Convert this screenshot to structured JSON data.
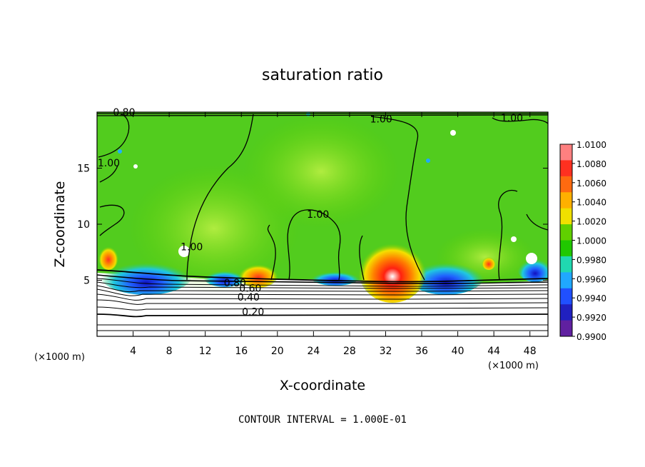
{
  "chart_data": {
    "type": "heatmap",
    "title": "saturation ratio",
    "xlabel": "X-coordinate",
    "ylabel": "Z-coordinate",
    "x_unit": "(×1000 m)",
    "z_unit": "(×1000 m)",
    "xlim": [
      0,
      50
    ],
    "ylim": [
      0,
      20
    ],
    "x_ticks": [
      4,
      8,
      12,
      16,
      20,
      24,
      28,
      32,
      36,
      40,
      44,
      48
    ],
    "y_ticks": [
      5,
      10,
      15
    ],
    "colorbar": {
      "min": 0.99,
      "max": 1.01,
      "ticks": [
        "1.0100",
        "1.0080",
        "1.0060",
        "1.0040",
        "1.0020",
        "1.0000",
        "0.9980",
        "0.9960",
        "0.9940",
        "0.9920",
        "0.9900"
      ],
      "colors": [
        "#ff8080",
        "#ff3020",
        "#ff6a10",
        "#ffb000",
        "#f0e000",
        "#60d000",
        "#20c800",
        "#20d8b0",
        "#20a8ff",
        "#2050ff",
        "#2020c0",
        "#6020a0"
      ]
    },
    "contour_labels": [
      {
        "text": "0.80",
        "x": 3.0,
        "z": 19.8
      },
      {
        "text": "1.00",
        "x": 31.5,
        "z": 19.2
      },
      {
        "text": "1.00",
        "x": 46.0,
        "z": 19.3
      },
      {
        "text": "1.00",
        "x": 1.3,
        "z": 15.3
      },
      {
        "text": "1.00",
        "x": 24.5,
        "z": 10.7
      },
      {
        "text": "1.00",
        "x": 10.5,
        "z": 7.8
      },
      {
        "text": "0.80",
        "x": 15.3,
        "z": 4.6
      },
      {
        "text": "0.60",
        "x": 17.0,
        "z": 4.1
      },
      {
        "text": "0.40",
        "x": 16.8,
        "z": 3.3
      },
      {
        "text": "0.20",
        "x": 17.3,
        "z": 2.0
      }
    ],
    "warm_anomalies": [
      {
        "x": 32.5,
        "z": 5.5,
        "peak": 1.008
      },
      {
        "x": 18.0,
        "z": 5.2,
        "peak": 1.004
      },
      {
        "x": 1.5,
        "z": 6.8,
        "peak": 1.004
      }
    ],
    "dry_anomalies": [
      {
        "x": 5.0,
        "z": 5.6,
        "peak": 0.993
      },
      {
        "x": 37.5,
        "z": 5.4,
        "peak": 0.993
      },
      {
        "x": 14.0,
        "z": 5.4,
        "peak": 0.995
      }
    ],
    "note": "CONTOUR INTERVAL = 1.000E-01"
  }
}
